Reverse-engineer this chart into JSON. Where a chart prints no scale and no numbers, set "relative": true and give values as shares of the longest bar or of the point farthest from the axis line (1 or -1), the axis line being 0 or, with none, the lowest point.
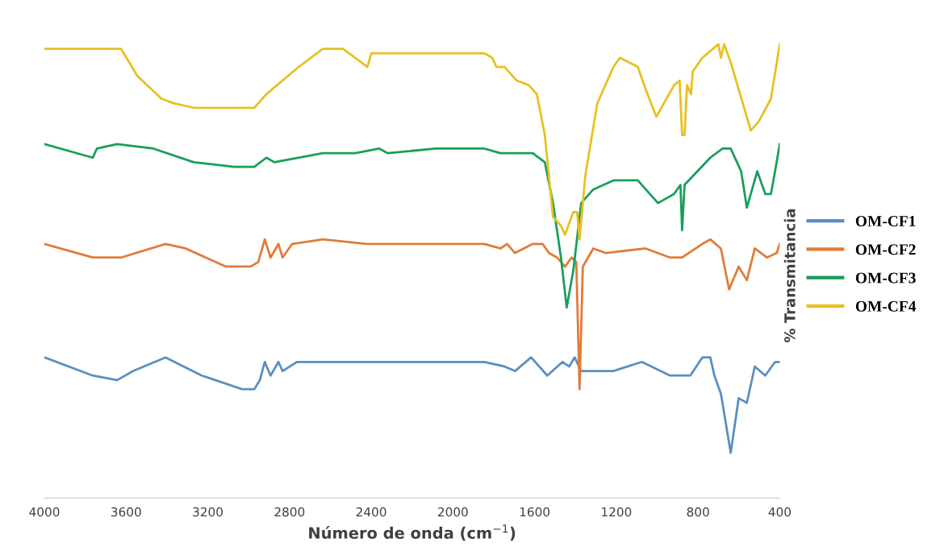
{
  "chart_data": {
    "type": "line",
    "relative": true,
    "xlabel": "Número de onda (cm$^{−1}$)",
    "ylabel": "% Transmitancia",
    "xlim": [
      4000,
      400
    ],
    "xticks": [
      4000,
      3600,
      3200,
      2800,
      2400,
      2000,
      1600,
      1200,
      800,
      400
    ],
    "grid": false,
    "legend": "right",
    "marker": "none",
    "line_style": "solid",
    "series": [
      {
        "name": "OM-CF1",
        "color": "#5a8fc0",
        "x": [
          4000,
          3763,
          3644,
          3565,
          3407,
          3229,
          3032,
          2972,
          2945,
          2921,
          2893,
          2854,
          2834,
          2763,
          1846,
          1747,
          1696,
          1617,
          1538,
          1463,
          1431,
          1404,
          1372,
          1214,
          1075,
          937,
          838,
          779,
          740,
          720,
          688,
          640,
          601,
          561,
          522,
          471,
          423,
          400
        ],
        "values": [
          0.31,
          0.27,
          0.26,
          0.28,
          0.31,
          0.27,
          0.24,
          0.24,
          0.26,
          0.3,
          0.27,
          0.3,
          0.28,
          0.3,
          0.3,
          0.29,
          0.28,
          0.31,
          0.27,
          0.3,
          0.29,
          0.31,
          0.28,
          0.28,
          0.3,
          0.27,
          0.27,
          0.31,
          0.31,
          0.27,
          0.23,
          0.1,
          0.22,
          0.21,
          0.29,
          0.27,
          0.3,
          0.3
        ]
      },
      {
        "name": "OM-CF2",
        "color": "#e07b39",
        "x": [
          4000,
          3763,
          3625,
          3407,
          3308,
          3111,
          2992,
          2953,
          2921,
          2893,
          2854,
          2834,
          2787,
          2637,
          2419,
          1846,
          1767,
          1735,
          1696,
          1609,
          1561,
          1530,
          1490,
          1451,
          1419,
          1396,
          1380,
          1364,
          1313,
          1253,
          1056,
          937,
          878,
          779,
          740,
          688,
          648,
          601,
          561,
          522,
          463,
          415,
          400
        ],
        "values": [
          0.56,
          0.53,
          0.53,
          0.56,
          0.55,
          0.51,
          0.51,
          0.52,
          0.57,
          0.53,
          0.56,
          0.53,
          0.56,
          0.57,
          0.56,
          0.56,
          0.55,
          0.56,
          0.54,
          0.56,
          0.56,
          0.54,
          0.53,
          0.51,
          0.53,
          0.52,
          0.24,
          0.51,
          0.55,
          0.54,
          0.55,
          0.53,
          0.53,
          0.56,
          0.57,
          0.55,
          0.46,
          0.51,
          0.48,
          0.55,
          0.53,
          0.54,
          0.56
        ]
      },
      {
        "name": "OM-CF3",
        "color": "#1a9e5a",
        "x": [
          4000,
          3763,
          3743,
          3644,
          3466,
          3269,
          3071,
          2972,
          2913,
          2874,
          2637,
          2478,
          2360,
          2320,
          2083,
          1846,
          1767,
          1688,
          1609,
          1550,
          1510,
          1471,
          1443,
          1411,
          1372,
          1313,
          1214,
          1095,
          996,
          917,
          886,
          878,
          866,
          740,
          680,
          640,
          589,
          561,
          510,
          471,
          443,
          423,
          400
        ],
        "values": [
          0.78,
          0.75,
          0.77,
          0.78,
          0.77,
          0.74,
          0.73,
          0.73,
          0.75,
          0.74,
          0.76,
          0.76,
          0.77,
          0.76,
          0.77,
          0.77,
          0.76,
          0.76,
          0.76,
          0.74,
          0.65,
          0.53,
          0.42,
          0.5,
          0.65,
          0.68,
          0.7,
          0.7,
          0.65,
          0.67,
          0.69,
          0.59,
          0.69,
          0.75,
          0.77,
          0.77,
          0.72,
          0.64,
          0.72,
          0.67,
          0.67,
          0.72,
          0.78
        ]
      },
      {
        "name": "OM-CF4",
        "color": "#e8c020",
        "x": [
          4000,
          3664,
          3625,
          3545,
          3427,
          3368,
          3269,
          3071,
          2972,
          2913,
          2755,
          2637,
          2538,
          2478,
          2419,
          2399,
          2281,
          2083,
          1846,
          1807,
          1787,
          1747,
          1688,
          1629,
          1589,
          1550,
          1510,
          1471,
          1451,
          1411,
          1392,
          1380,
          1352,
          1293,
          1214,
          1182,
          1095,
          1056,
          1004,
          917,
          890,
          878,
          866,
          854,
          834,
          826,
          779,
          700,
          688,
          672,
          640,
          581,
          542,
          502,
          443,
          400
        ],
        "values": [
          0.99,
          0.99,
          0.99,
          0.93,
          0.88,
          0.87,
          0.86,
          0.86,
          0.86,
          0.89,
          0.95,
          0.99,
          0.99,
          0.97,
          0.95,
          0.98,
          0.98,
          0.98,
          0.98,
          0.97,
          0.95,
          0.95,
          0.92,
          0.91,
          0.89,
          0.8,
          0.62,
          0.6,
          0.58,
          0.63,
          0.63,
          0.57,
          0.71,
          0.87,
          0.95,
          0.97,
          0.95,
          0.9,
          0.84,
          0.91,
          0.92,
          0.8,
          0.8,
          0.91,
          0.89,
          0.94,
          0.97,
          1.0,
          0.97,
          1.0,
          0.96,
          0.87,
          0.81,
          0.83,
          0.88,
          1.0
        ]
      }
    ]
  }
}
